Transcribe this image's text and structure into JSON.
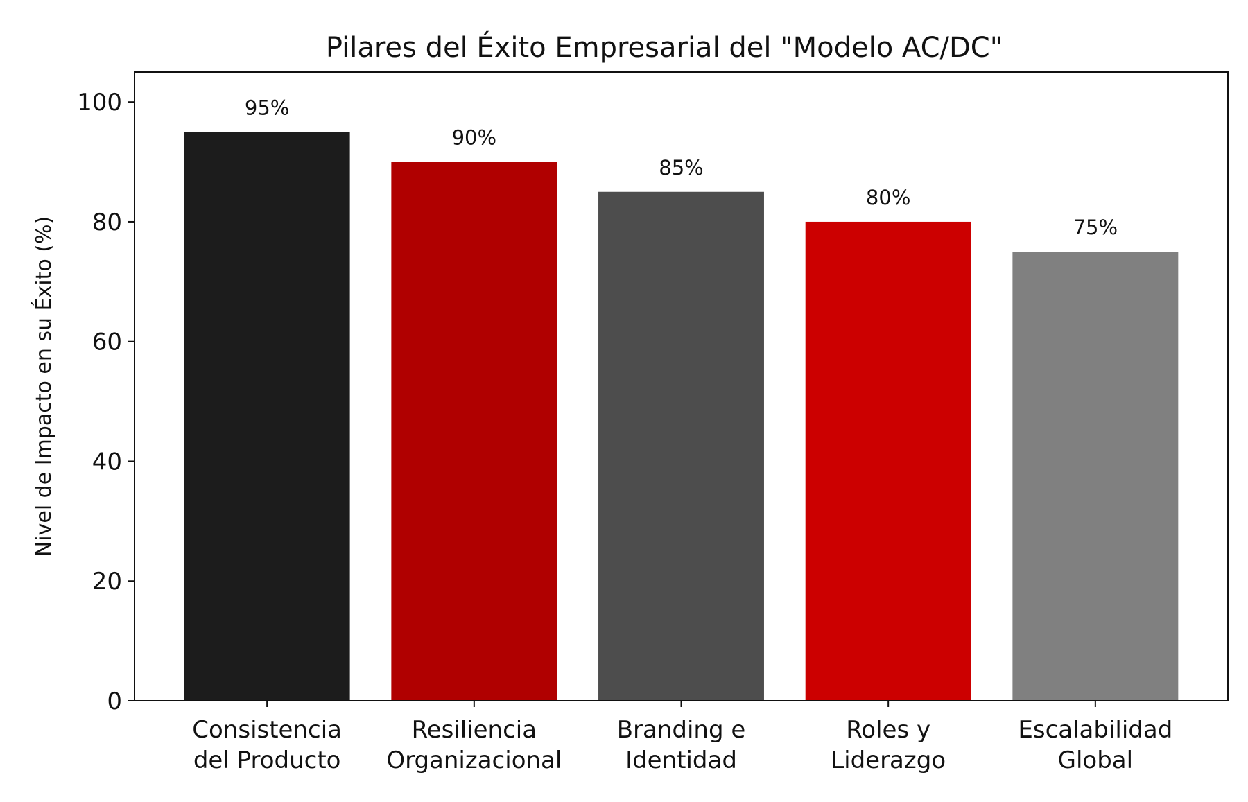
{
  "chart_data": {
    "type": "bar",
    "title": "Pilares del Éxito Empresarial del \"Modelo AC/DC\"",
    "xlabel": "",
    "ylabel": "Nivel de Impacto en su Éxito (%)",
    "ylim": [
      0,
      105
    ],
    "yticks": [
      0,
      20,
      40,
      60,
      80,
      100
    ],
    "grid": false,
    "categories": [
      [
        "Consistencia",
        "del Producto"
      ],
      [
        "Resiliencia",
        "Organizacional"
      ],
      [
        "Branding e",
        "Identidad"
      ],
      [
        "Roles y",
        "Liderazgo"
      ],
      [
        "Escalabilidad",
        "Global"
      ]
    ],
    "values": [
      95,
      90,
      85,
      80,
      75
    ],
    "data_labels": [
      "95%",
      "90%",
      "85%",
      "80%",
      "75%"
    ],
    "colors": [
      "#1c1c1c",
      "#b00000",
      "#4d4d4d",
      "#cc0000",
      "#808080"
    ]
  }
}
